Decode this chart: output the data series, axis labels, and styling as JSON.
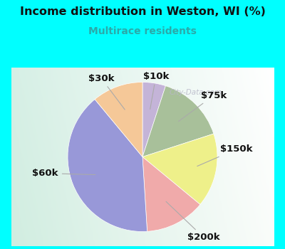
{
  "title": "Income distribution in Weston, WI (%)",
  "subtitle": "Multirace residents",
  "title_color": "#111111",
  "subtitle_color": "#2aaaaa",
  "bg_cyan": "#00FFFF",
  "bg_chart_topleft": "#e8f8f0",
  "bg_chart_bottomleft": "#c8eedd",
  "bg_chart_topright": "#f5fffe",
  "watermark": "City-Data.com",
  "slices": [
    {
      "label": "$10k",
      "value": 5,
      "color": "#c4b4d8"
    },
    {
      "label": "$75k",
      "value": 15,
      "color": "#a8c09a"
    },
    {
      "label": "$150k",
      "value": 16,
      "color": "#eef08a"
    },
    {
      "label": "$200k",
      "value": 13,
      "color": "#f0aaaa"
    },
    {
      "label": "$60k",
      "value": 40,
      "color": "#9898d8"
    },
    {
      "label": "$30k",
      "value": 11,
      "color": "#f5c898"
    }
  ],
  "label_color": "#111111",
  "label_fontsize": 9.5,
  "label_fontweight": "bold",
  "figsize": [
    4.0,
    3.5
  ],
  "dpi": 100
}
